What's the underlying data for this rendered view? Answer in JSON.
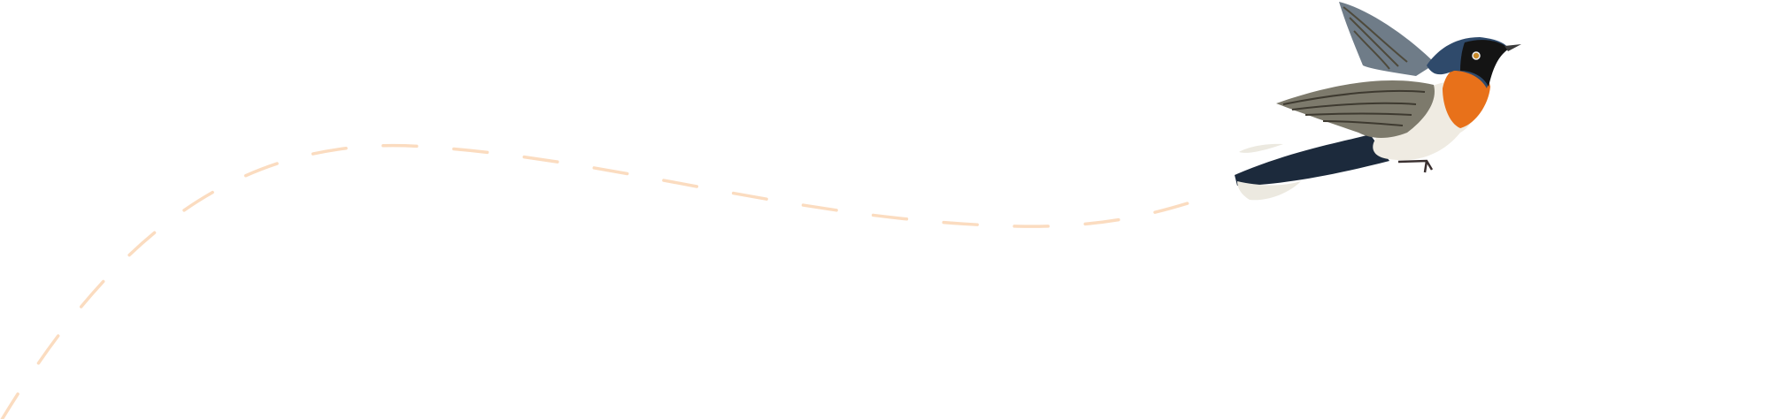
{
  "illustration": {
    "subject": "bird-in-flight",
    "flight_path_style": "dashed",
    "colors": {
      "background": "#ffffff",
      "flight_path": "#fbdcc0",
      "bird_head": "#2f4a6b",
      "bird_throat": "#e8711a",
      "bird_belly": "#efebe2",
      "bird_wing": "#7d7a6c",
      "bird_tail": "#1c2a3c"
    }
  }
}
